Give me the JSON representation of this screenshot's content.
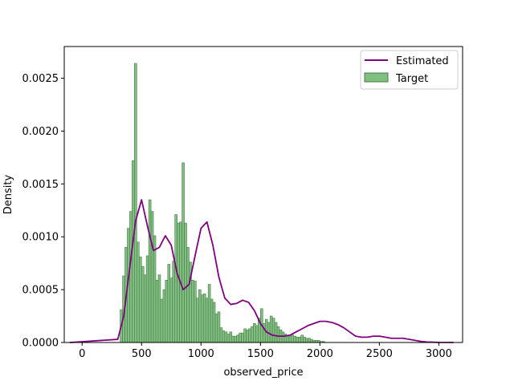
{
  "chart_data": {
    "type": "bar",
    "title": "",
    "xlabel": "observed_price",
    "ylabel": "Density",
    "xlim": [
      -150,
      3200
    ],
    "ylim": [
      0,
      0.0028
    ],
    "grid": false,
    "x_ticks": [
      0,
      500,
      1000,
      1500,
      2000,
      2500,
      3000
    ],
    "x_tick_labels": [
      "0",
      "500",
      "1000",
      "1500",
      "2000",
      "2500",
      "3000"
    ],
    "y_ticks": [
      0,
      0.0005,
      0.001,
      0.0015,
      0.002,
      0.0025
    ],
    "y_tick_labels": [
      "0.0000",
      "0.0005",
      "0.0010",
      "0.0015",
      "0.0020",
      "0.0025"
    ],
    "legend": {
      "location": "top-right",
      "entries": [
        {
          "label": "Estimated",
          "kind": "line",
          "color": "#800080"
        },
        {
          "label": "Target",
          "kind": "patch",
          "color": "#7fbf7f",
          "edge": "#4d7a4d"
        }
      ]
    },
    "series": [
      {
        "name": "Target",
        "kind": "histogram",
        "color": "#7fbf7f",
        "edge_color": "#4d7a4d",
        "bin_start": 320,
        "bin_width": 20,
        "values": [
          0.00031,
          0.00063,
          0.0009,
          0.00108,
          0.00124,
          0.00172,
          0.00264,
          0.00095,
          0.00081,
          0.00072,
          0.00064,
          0.00082,
          0.00135,
          0.00124,
          0.00101,
          0.00059,
          0.00064,
          0.00041,
          0.0005,
          0.00059,
          0.00074,
          0.00061,
          0.00077,
          0.00121,
          0.00113,
          0.00114,
          0.0017,
          0.00113,
          0.0009,
          0.00076,
          0.00059,
          0.00058,
          0.00042,
          0.0005,
          0.00045,
          0.00046,
          0.00042,
          0.00055,
          0.00041,
          0.00038,
          0.00027,
          0.00029,
          0.00014,
          0.00011,
          0.0001,
          8e-05,
          0.0001,
          6e-05,
          6e-05,
          7e-05,
          9e-05,
          9e-05,
          0.00013,
          0.00012,
          0.00013,
          0.00015,
          0.00018,
          0.00016,
          0.00023,
          0.00032,
          0.00018,
          0.00022,
          0.00019,
          0.00025,
          0.00023,
          0.00019,
          0.00015,
          0.00012,
          0.0001,
          8e-05,
          6e-05,
          6e-05,
          7e-05,
          6e-05,
          5e-05,
          5e-05,
          7e-05,
          5e-05,
          4e-05,
          4e-05,
          3e-05,
          2e-05,
          2e-05,
          2e-05,
          1e-05,
          1e-05
        ]
      },
      {
        "name": "Estimated",
        "kind": "line",
        "color": "#800080",
        "x": [
          -100,
          300,
          350,
          400,
          450,
          500,
          550,
          600,
          650,
          700,
          750,
          800,
          850,
          900,
          950,
          1000,
          1050,
          1100,
          1150,
          1200,
          1250,
          1300,
          1350,
          1400,
          1450,
          1500,
          1550,
          1600,
          1650,
          1700,
          1750,
          1800,
          1850,
          1900,
          1950,
          2000,
          2050,
          2100,
          2150,
          2200,
          2250,
          2300,
          2350,
          2400,
          2450,
          2500,
          2550,
          2600,
          2650,
          2700,
          2750,
          2800,
          2850,
          2900,
          3000,
          3120
        ],
        "y": [
          0,
          3e-05,
          0.00025,
          0.0007,
          0.00115,
          0.00135,
          0.0011,
          0.00087,
          0.0009,
          0.00101,
          0.00092,
          0.00065,
          0.0005,
          0.00055,
          0.00082,
          0.00108,
          0.00114,
          0.00092,
          0.00062,
          0.00042,
          0.00036,
          0.00037,
          0.0004,
          0.00038,
          0.0003,
          0.00018,
          0.0001,
          7e-05,
          6e-05,
          6e-05,
          7e-05,
          0.0001,
          0.00013,
          0.00016,
          0.00018,
          0.0002,
          0.0002,
          0.00019,
          0.00017,
          0.00014,
          0.0001,
          6e-05,
          5e-05,
          5e-05,
          6e-05,
          6e-05,
          5e-05,
          4e-05,
          4e-05,
          4e-05,
          3e-05,
          2e-05,
          1e-05,
          5e-06,
          1e-06,
          0
        ]
      }
    ]
  }
}
